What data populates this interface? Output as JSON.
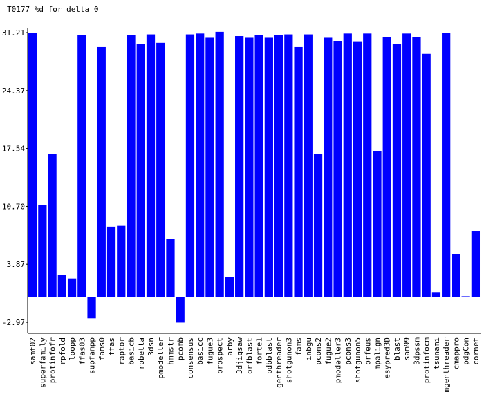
{
  "chart_data": {
    "type": "bar",
    "title": "T0177 %d for delta 0",
    "categories": [
      "samt02",
      "superfamily",
      "protinfofr",
      "rpfold",
      "loopp",
      "ffas03",
      "supfampp",
      "fams0",
      "ffas",
      "raptor",
      "basicb",
      "robetta",
      "3dsn",
      "pmodeller",
      "hmmstr",
      "pcomb",
      "consensus",
      "basicc",
      "fugue3",
      "prospect",
      "arby",
      "3djigsaw",
      "orfblast",
      "forte1",
      "pdbblast",
      "genthreader",
      "shotgunon3",
      "fams",
      "inbgu",
      "pcons2",
      "fugue2",
      "pmodeller3",
      "pcons3",
      "shotgunon5",
      "orfeus",
      "mpalign",
      "esypred3D",
      "blast",
      "sam99",
      "3dpssm",
      "protinfocm",
      "tsunami",
      "mgenthreader",
      "cmappro",
      "pdgCon",
      "cornet"
    ],
    "values": [
      31.2,
      10.9,
      16.9,
      2.6,
      2.2,
      30.9,
      -2.5,
      29.5,
      8.3,
      8.4,
      30.9,
      29.9,
      31.0,
      30.0,
      6.9,
      -3.0,
      31.0,
      31.1,
      30.6,
      31.3,
      2.4,
      30.8,
      30.6,
      30.9,
      30.6,
      30.9,
      31.0,
      29.5,
      31.0,
      16.9,
      30.6,
      30.2,
      31.1,
      30.1,
      31.1,
      17.2,
      30.7,
      29.9,
      31.1,
      30.7,
      28.7,
      0.6,
      31.2,
      5.1,
      0.1,
      7.8
    ],
    "color": "#0000ff",
    "ylim": [
      -4.27,
      31.78
    ],
    "yticks": [
      -2.97,
      3.87,
      {
        "value": 10.7,
        "label": "10.70"
      },
      17.54,
      24.37,
      31.21
    ],
    "grid": false
  }
}
